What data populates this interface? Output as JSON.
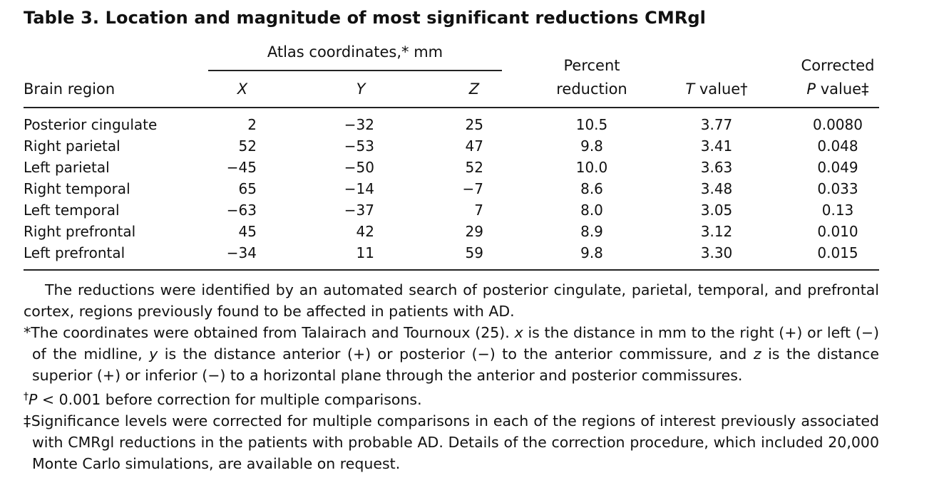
{
  "table": {
    "title": "Table 3. Location and magnitude of most significant reductions CMRgl",
    "header": {
      "atlas_group": "Atlas coordinates,* mm",
      "brain_region": "Brain region",
      "x": "X",
      "y": "Y",
      "z": "Z",
      "percent_line1": "Percent",
      "percent_line2": "reduction",
      "t_value_italic": "T",
      "t_value_rest": " value†",
      "p_line1": "Corrected",
      "p_value_italic": "P",
      "p_value_rest": " value‡"
    },
    "rows": [
      {
        "region": "Posterior cingulate",
        "x": "2",
        "y": "−32",
        "z": "25",
        "percent": "10.5",
        "t": "3.77",
        "p": "0.0080"
      },
      {
        "region": "Right parietal",
        "x": "52",
        "y": "−53",
        "z": "47",
        "percent": "9.8",
        "t": "3.41",
        "p": "0.048"
      },
      {
        "region": "Left parietal",
        "x": "−45",
        "y": "−50",
        "z": "52",
        "percent": "10.0",
        "t": "3.63",
        "p": "0.049"
      },
      {
        "region": "Right temporal",
        "x": "65",
        "y": "−14",
        "z": "−7",
        "percent": "8.6",
        "t": "3.48",
        "p": "0.033"
      },
      {
        "region": "Left temporal",
        "x": "−63",
        "y": "−37",
        "z": "7",
        "percent": "8.0",
        "t": "3.05",
        "p": "0.13"
      },
      {
        "region": "Right prefrontal",
        "x": "45",
        "y": "42",
        "z": "29",
        "percent": "8.9",
        "t": "3.12",
        "p": "0.010"
      },
      {
        "region": "Left prefrontal",
        "x": "−34",
        "y": "11",
        "z": "59",
        "percent": "9.8",
        "t": "3.30",
        "p": "0.015"
      }
    ]
  },
  "notes": {
    "intro": "The reductions were identified by an automated search of posterior cingulate, parietal, temporal, and prefrontal cortex, regions previously found to be affected in patients with AD.",
    "star": {
      "a": "*The coordinates were obtained from Talairach and Tournoux (25). ",
      "x": "x",
      "b": " is the distance in mm to the right (+) or left (−) of the midline, ",
      "y": "y",
      "c": " is the distance anterior (+) or posterior (−) to the anterior commissure, and ",
      "z": "z",
      "d": " is the distance superior (+) or inferior (−) to a horizontal plane through the anterior and posterior commissures."
    },
    "dagger": {
      "mark": "†",
      "p": "P",
      "rest": " < 0.001 before correction for multiple comparisons."
    },
    "ddagger": "‡Significance levels were corrected for multiple comparisons in each of the regions of interest previously associated with CMRgl reductions in the patients with probable AD. Details of the correction procedure, which included 20,000 Monte Carlo simulations, are available on request."
  }
}
